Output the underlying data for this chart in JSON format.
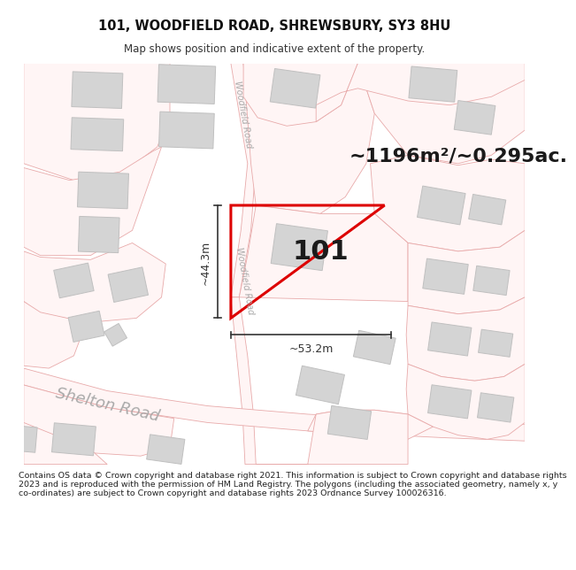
{
  "title": "101, WOODFIELD ROAD, SHREWSBURY, SY3 8HU",
  "subtitle": "Map shows position and indicative extent of the property.",
  "area_text": "~1196m²/~0.295ac.",
  "label_101": "101",
  "dim_height": "~44.3m",
  "dim_width": "~53.2m",
  "road_label_top": "Woodfield Road",
  "road_label_bottom": "Woodfield Road",
  "road_label_shelton": "Shelton Road",
  "footer": "Contains OS data © Crown copyright and database right 2021. This information is subject to Crown copyright and database rights 2023 and is reproduced with the permission of HM Land Registry. The polygons (including the associated geometry, namely x, y co-ordinates) are subject to Crown copyright and database rights 2023 Ordnance Survey 100026316.",
  "bg_color": "#ffffff",
  "map_bg": "#ffffff",
  "road_stroke": "#e8aaaa",
  "building_fill": "#d4d4d4",
  "building_edge": "#c0c0c0",
  "highlight_color": "#dd0000",
  "dim_color": "#333333",
  "road_label_color": "#aaaaaa",
  "shelton_color": "#aaaaaa",
  "footer_bg": "#ffffff",
  "title_size": 10.5,
  "subtitle_size": 8.5,
  "area_size": 16,
  "label_size": 22,
  "dim_size": 9,
  "road_label_size": 7,
  "shelton_size": 13,
  "footer_size": 6.8
}
